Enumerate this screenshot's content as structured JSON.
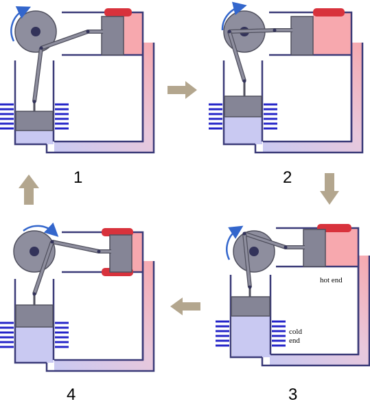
{
  "stages": [
    {
      "number": "1"
    },
    {
      "number": "2"
    },
    {
      "number": "3"
    },
    {
      "number": "4"
    }
  ],
  "labels": {
    "hot_end": "hot end",
    "cold_end_line1": "cold",
    "cold_end_line2": "end"
  },
  "colors": {
    "frame": "#3a3a78",
    "hot": "#f7a8ae",
    "hot_cap": "#d8323c",
    "cold": "#c9c9f2",
    "fins": "#2424c8",
    "metal": "#858596",
    "metal_dark": "#50505e",
    "flywheel": "#8e8e9e",
    "hub": "#33335a",
    "rotation_arrow": "#3366cc",
    "flow_arrow": "#b3a68e"
  }
}
